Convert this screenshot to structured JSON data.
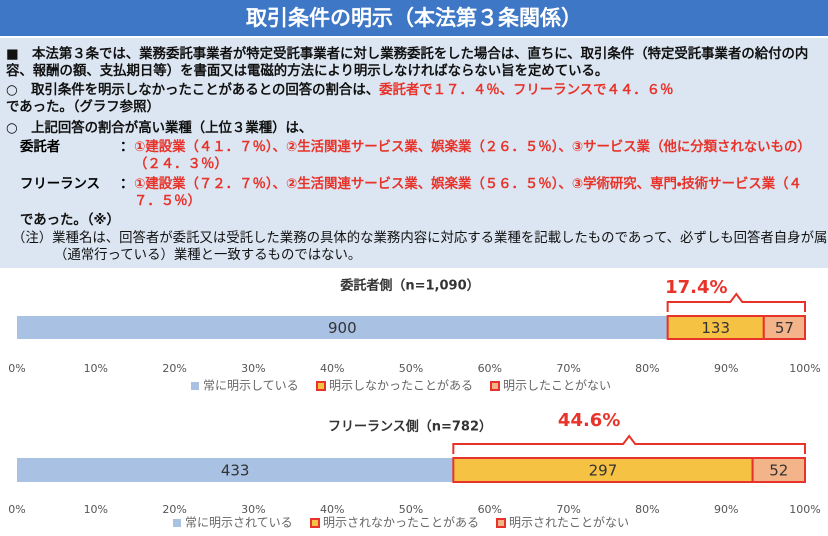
{
  "header": {
    "title": "取引条件の明示（本法第３条関係）"
  },
  "body": {
    "p1": "■　本法第３条では、業務委託事業者が特定受託事業者に対し業務委託をした場合は、直ちに、取引条件（特定受託事業者の給付の内容、報酬の額、支払期日等）を書面又は電磁的方法により明示しなければならない旨を定めている。",
    "p2": {
      "prefix": "○　取引条件を明示しなかったことがあるとの回答の割合は、",
      "highlight": "委託者で１７．４％、フリーランスで４４．６％",
      "suffix": "であった。（グラフ参照）"
    },
    "p3": {
      "lead": "○　上記回答の割合が高い業種（上位３業種）は、",
      "sep": "：",
      "rows": [
        {
          "label": "委託者",
          "text": "①建設業（４１．７％）、②生活関連サービス業、娯楽業（２６．５％）、③サービス業（他に分類されないもの）（２４．３％）"
        },
        {
          "label": "フリーランス",
          "text": "①建設業（７２．７％）、②生活関連サービス業、娯楽業（５６．５％）、③学術研究、専門・技術サービス業（４７．５％）"
        }
      ],
      "close": "であった。（※）"
    },
    "note": "（注）業種名は、回答者が委託又は受託した業務の具体的な業務内容に対応する業種を記載したものであって、必ずしも回答者自身が属する（通常行っている）業種と一致するものではない。"
  },
  "chart_data": [
    {
      "type": "bar",
      "orientation": "horizontal",
      "stacking": "percent",
      "title": "委託者側（n=1,090）",
      "annotation": "17.4%",
      "annotation_color": "#e8332a",
      "series": [
        {
          "name": "常に明示している",
          "color": "#a9c1e3",
          "values": [
            900
          ]
        },
        {
          "name": "明示しなかったことがある",
          "color": "#f6c244",
          "edge_color": "#e8332a",
          "values": [
            133
          ]
        },
        {
          "name": "明示したことがない",
          "color": "#f4b48a",
          "edge_color": "#e8332a",
          "values": [
            57
          ]
        }
      ],
      "xlim": [
        0,
        100
      ],
      "xticks": [
        {
          "value": 0,
          "label": "0%"
        },
        {
          "value": 10,
          "label": "10%"
        },
        {
          "value": 20,
          "label": "20%"
        },
        {
          "value": 30,
          "label": "30%"
        },
        {
          "value": 40,
          "label": "40%"
        },
        {
          "value": 50,
          "label": "50%"
        },
        {
          "value": 60,
          "label": "60%"
        },
        {
          "value": 70,
          "label": "70%"
        },
        {
          "value": 80,
          "label": "80%"
        },
        {
          "value": 90,
          "label": "90%"
        },
        {
          "value": 100,
          "label": "100%"
        }
      ]
    },
    {
      "type": "bar",
      "orientation": "horizontal",
      "stacking": "percent",
      "title": "フリーランス側（n=782）",
      "annotation": "44.6%",
      "annotation_color": "#e8332a",
      "series": [
        {
          "name": "常に明示されている",
          "color": "#a9c1e3",
          "values": [
            433
          ]
        },
        {
          "name": "明示されなかったことがある",
          "color": "#f6c244",
          "edge_color": "#e8332a",
          "values": [
            297
          ]
        },
        {
          "name": "明示されたことがない",
          "color": "#f4b48a",
          "edge_color": "#e8332a",
          "values": [
            52
          ]
        }
      ],
      "xlim": [
        0,
        100
      ],
      "xticks": [
        {
          "value": 0,
          "label": "0%"
        },
        {
          "value": 10,
          "label": "10%"
        },
        {
          "value": 20,
          "label": "20%"
        },
        {
          "value": 30,
          "label": "30%"
        },
        {
          "value": 40,
          "label": "40%"
        },
        {
          "value": 50,
          "label": "50%"
        },
        {
          "value": 60,
          "label": "60%"
        },
        {
          "value": 70,
          "label": "70%"
        },
        {
          "value": 80,
          "label": "80%"
        },
        {
          "value": 90,
          "label": "90%"
        },
        {
          "value": 100,
          "label": "100%"
        }
      ]
    }
  ]
}
